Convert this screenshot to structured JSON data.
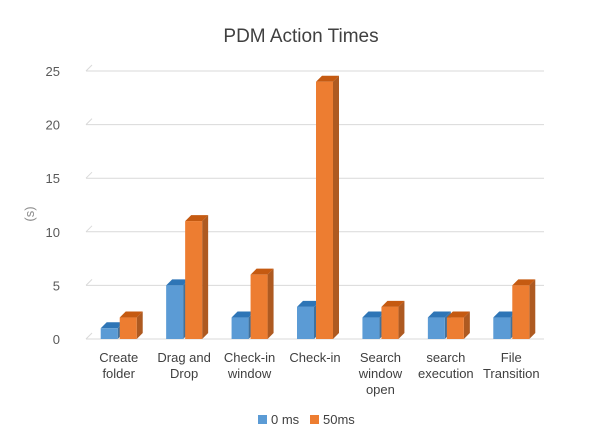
{
  "chart_data": {
    "type": "bar",
    "title": "PDM Action Times",
    "ylabel": "(s)",
    "xlabel": "",
    "ylim": [
      0,
      25
    ],
    "yticks": [
      0,
      5,
      10,
      15,
      20,
      25
    ],
    "grid": true,
    "legend_position": "bottom",
    "categories": [
      [
        "Create",
        "folder"
      ],
      [
        "Drag and",
        "Drop"
      ],
      [
        "Check-in",
        "window"
      ],
      [
        "Check-in"
      ],
      [
        "Search",
        "window",
        "open"
      ],
      [
        "search",
        "execution"
      ],
      [
        "File",
        "Transition"
      ]
    ],
    "series": [
      {
        "name": "0 ms",
        "values": [
          1,
          5,
          2,
          3,
          2,
          2,
          2
        ],
        "color": "#5b9bd5",
        "side_color": "#41719c",
        "top_color": "#2e75b6"
      },
      {
        "name": "50ms",
        "values": [
          2,
          11,
          6,
          24,
          3,
          2,
          5
        ],
        "color": "#ed7d31",
        "side_color": "#ae5a21",
        "top_color": "#c55a11"
      }
    ]
  }
}
